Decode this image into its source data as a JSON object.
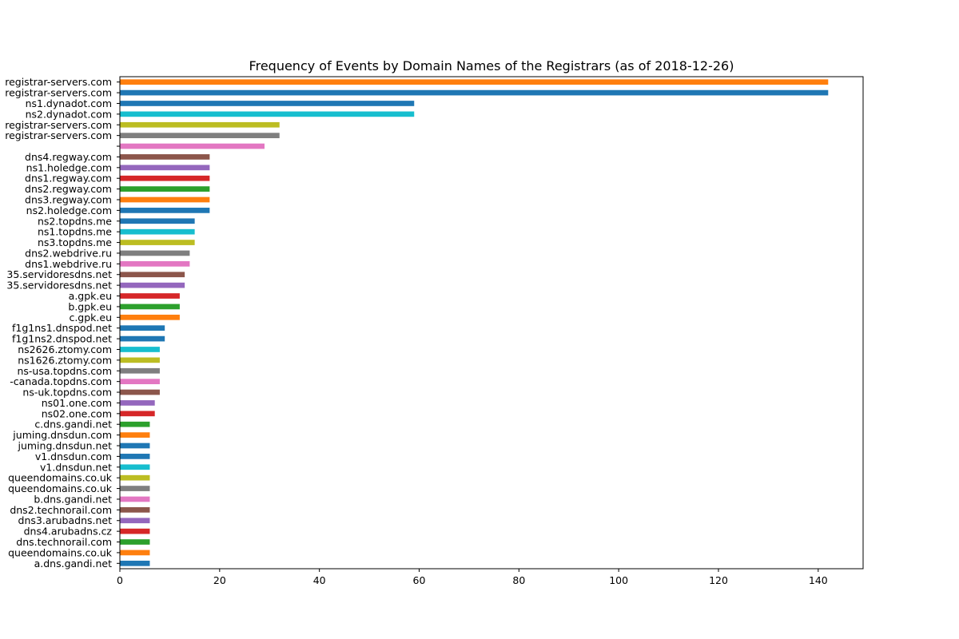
{
  "chart_data": {
    "type": "bar",
    "orientation": "horizontal",
    "title": "Frequency of Events by Domain Names of the Registrars (as of 2018-12-26)",
    "xlabel": "",
    "ylabel": "",
    "xlim": [
      0,
      149
    ],
    "xticks": [
      0,
      20,
      40,
      60,
      80,
      100,
      120,
      140
    ],
    "grid": false,
    "legend": "none",
    "categories": [
      "registrar-servers.com",
      "registrar-servers.com",
      "ns1.dynadot.com",
      "ns2.dynadot.com",
      "registrar-servers.com",
      "registrar-servers.com",
      "",
      "dns4.regway.com",
      "ns1.holedge.com",
      "dns1.regway.com",
      "dns2.regway.com",
      "dns3.regway.com",
      "ns2.holedge.com",
      "ns2.topdns.me",
      "ns1.topdns.me",
      "ns3.topdns.me",
      "dns2.webdrive.ru",
      "dns1.webdrive.ru",
      "35.servidoresdns.net",
      "35.servidoresdns.net",
      "a.gpk.eu",
      "b.gpk.eu",
      "c.gpk.eu",
      "f1g1ns1.dnspod.net",
      "f1g1ns2.dnspod.net",
      "ns2626.ztomy.com",
      "ns1626.ztomy.com",
      "ns-usa.topdns.com",
      "-canada.topdns.com",
      "ns-uk.topdns.com",
      "ns01.one.com",
      "ns02.one.com",
      "c.dns.gandi.net",
      "juming.dnsdun.com",
      "juming.dnsdun.net",
      "v1.dnsdun.com",
      "v1.dnsdun.net",
      "queendomains.co.uk",
      "queendomains.co.uk",
      "b.dns.gandi.net",
      "dns2.technorail.com",
      "dns3.arubadns.net",
      "dns4.arubadns.cz",
      "dns.technorail.com",
      "queendomains.co.uk",
      "a.dns.gandi.net"
    ],
    "values": [
      142,
      142,
      59,
      59,
      32,
      32,
      29,
      18,
      18,
      18,
      18,
      18,
      18,
      15,
      15,
      15,
      14,
      14,
      13,
      13,
      12,
      12,
      12,
      9,
      9,
      8,
      8,
      8,
      8,
      8,
      7,
      7,
      6,
      6,
      6,
      6,
      6,
      6,
      6,
      6,
      6,
      6,
      6,
      6,
      6,
      6
    ],
    "colors": [
      "#ff7f0e",
      "#1f77b4",
      "#1f77b4",
      "#17becf",
      "#bcbd22",
      "#7f7f7f",
      "#e377c2",
      "#8c564b",
      "#9467bd",
      "#d62728",
      "#2ca02c",
      "#ff7f0e",
      "#1f77b4",
      "#1f77b4",
      "#17becf",
      "#bcbd22",
      "#7f7f7f",
      "#e377c2",
      "#8c564b",
      "#9467bd",
      "#d62728",
      "#2ca02c",
      "#ff7f0e",
      "#1f77b4",
      "#1f77b4",
      "#17becf",
      "#bcbd22",
      "#7f7f7f",
      "#e377c2",
      "#8c564b",
      "#9467bd",
      "#d62728",
      "#2ca02c",
      "#ff7f0e",
      "#1f77b4",
      "#1f77b4",
      "#17becf",
      "#bcbd22",
      "#7f7f7f",
      "#e377c2",
      "#8c564b",
      "#9467bd",
      "#d62728",
      "#2ca02c",
      "#ff7f0e",
      "#1f77b4"
    ]
  }
}
